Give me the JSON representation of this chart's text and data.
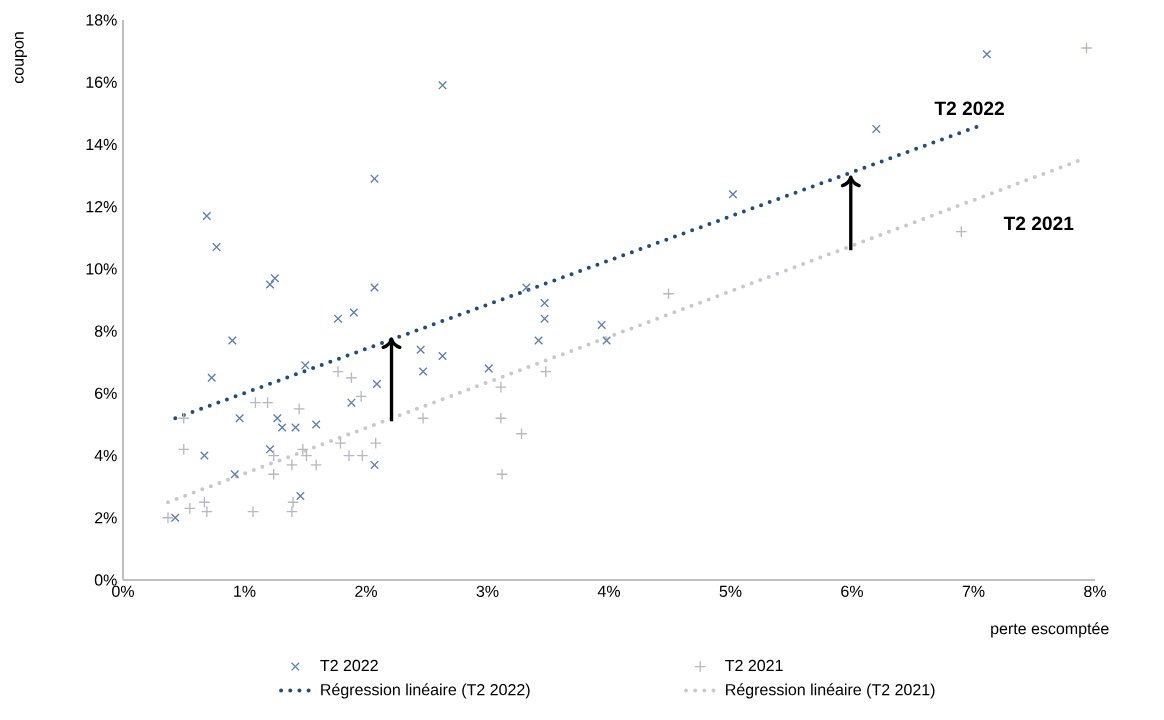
{
  "chart_data": {
    "type": "scatter",
    "xlabel": "perte escomptée",
    "ylabel": "coupon",
    "xlim": [
      0,
      8
    ],
    "ylim": [
      0,
      18
    ],
    "xticks": [
      {
        "value": 0,
        "label": "0%"
      },
      {
        "value": 1,
        "label": "1%"
      },
      {
        "value": 2,
        "label": "2%"
      },
      {
        "value": 3,
        "label": "3%"
      },
      {
        "value": 4,
        "label": "4%"
      },
      {
        "value": 5,
        "label": "5%"
      },
      {
        "value": 6,
        "label": "6%"
      },
      {
        "value": 7,
        "label": "7%"
      },
      {
        "value": 8,
        "label": "8%"
      }
    ],
    "yticks": [
      {
        "value": 0,
        "label": "0%"
      },
      {
        "value": 2,
        "label": "2%"
      },
      {
        "value": 4,
        "label": "4%"
      },
      {
        "value": 6,
        "label": "6%"
      },
      {
        "value": 8,
        "label": "8%"
      },
      {
        "value": 10,
        "label": "10%"
      },
      {
        "value": 12,
        "label": "12%"
      },
      {
        "value": 14,
        "label": "14%"
      },
      {
        "value": 16,
        "label": "16%"
      },
      {
        "value": 18,
        "label": "18%"
      }
    ],
    "grid": false,
    "legend": "bottom",
    "series": [
      {
        "name": "T2 2022",
        "type": "scatter",
        "marker": "cross",
        "color": "#5a7fb0",
        "x": [
          0.43,
          0.67,
          0.69,
          0.73,
          0.77,
          0.9,
          1.21,
          1.25,
          2.07,
          1.77,
          1.9,
          2.07,
          1.5,
          1.88,
          2.09,
          0.96,
          1.27,
          1.31,
          1.42,
          1.59,
          1.21,
          0.92,
          1.46,
          2.07,
          2.63,
          3.32,
          3.47,
          3.47,
          3.42,
          3.94,
          3.98,
          2.45,
          2.63,
          2.47,
          3.01,
          5.02,
          6.2,
          7.11
        ],
        "values": [
          2.0,
          4.0,
          11.7,
          6.5,
          10.7,
          7.7,
          9.5,
          9.7,
          12.9,
          8.4,
          8.6,
          9.4,
          6.9,
          5.7,
          6.3,
          5.2,
          5.2,
          4.9,
          4.9,
          5.0,
          4.2,
          3.4,
          2.7,
          3.7,
          15.9,
          9.4,
          8.9,
          8.4,
          7.7,
          8.2,
          7.7,
          7.4,
          7.2,
          6.7,
          6.8,
          12.4,
          14.5,
          16.9
        ]
      },
      {
        "name": "T2 2021",
        "type": "scatter",
        "marker": "plus",
        "color": "#b8b8c4",
        "x": [
          1.77,
          1.88,
          1.96,
          1.09,
          1.19,
          1.45,
          0.5,
          0.5,
          1.48,
          1.24,
          1.51,
          1.39,
          1.59,
          1.24,
          1.79,
          2.08,
          1.86,
          1.97,
          0.55,
          0.67,
          0.69,
          1.07,
          1.4,
          1.39,
          0.37,
          4.49,
          3.48,
          3.11,
          2.47,
          3.11,
          3.28,
          3.12,
          6.9,
          7.93
        ],
        "values": [
          6.7,
          6.5,
          5.9,
          5.7,
          5.7,
          5.5,
          5.2,
          4.2,
          4.2,
          4.0,
          4.0,
          3.7,
          3.7,
          3.4,
          4.4,
          4.4,
          4.0,
          4.0,
          2.3,
          2.5,
          2.2,
          2.2,
          2.5,
          2.2,
          2.0,
          9.2,
          6.7,
          6.2,
          5.2,
          5.2,
          4.7,
          3.4,
          11.2,
          17.1
        ]
      },
      {
        "name": "Régression linéaire (T2 2022)",
        "type": "line",
        "line_style": "dotted",
        "marker": "none",
        "color": "#1f4e79",
        "x": [
          0.43,
          7.05
        ],
        "values": [
          5.2,
          14.6
        ]
      },
      {
        "name": "Régression linéaire (T2 2021)",
        "type": "line",
        "line_style": "dotted",
        "marker": "none",
        "color": "#c8c8d0",
        "x": [
          0.37,
          7.88
        ],
        "values": [
          2.5,
          13.5
        ]
      }
    ],
    "annotations": [
      "T2 2022",
      "T2 2021"
    ]
  }
}
